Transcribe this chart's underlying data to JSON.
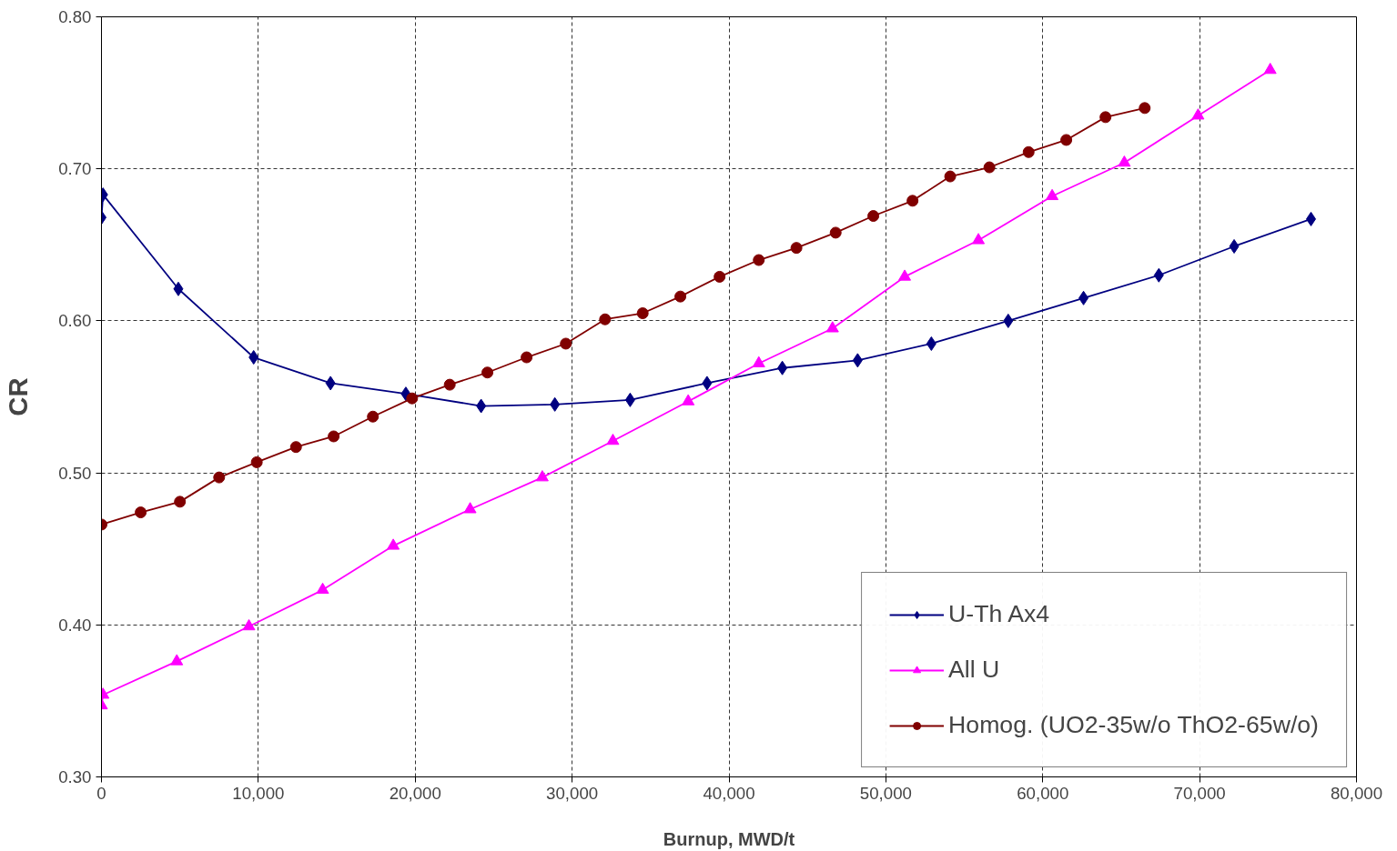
{
  "chart_data": {
    "type": "line",
    "xlabel": "Burnup, MWD/t",
    "ylabel": "CR",
    "xlim": [
      0,
      80000
    ],
    "ylim": [
      0.3,
      0.8
    ],
    "xticks": [
      0,
      {
        "value": 10000,
        "label": "10,000"
      },
      {
        "value": 20000,
        "label": "20,000"
      },
      {
        "value": 30000,
        "label": "30,000"
      },
      {
        "value": 40000,
        "label": "40,000"
      },
      {
        "value": 50000,
        "label": "50,000"
      },
      {
        "value": 60000,
        "label": "60,000"
      },
      {
        "value": 70000,
        "label": "70,000"
      },
      {
        "value": 80000,
        "label": "80,000"
      }
    ],
    "yticks": [
      {
        "value": 0.3,
        "label": "0.30"
      },
      {
        "value": 0.4,
        "label": "0.40"
      },
      {
        "value": 0.5,
        "label": "0.50"
      },
      {
        "value": 0.6,
        "label": "0.60"
      },
      {
        "value": 0.7,
        "label": "0.70"
      },
      {
        "value": 0.8,
        "label": "0.80"
      }
    ],
    "grid": true,
    "legend": "bottom right",
    "line_style": "solid",
    "series": [
      {
        "name": "U-Th Ax4",
        "color": "#000080",
        "marker": "diamond",
        "x": [
          0,
          100,
          4900,
          9700,
          14600,
          19400,
          24200,
          28900,
          33700,
          38600,
          43400,
          48200,
          52900,
          57800,
          62600,
          67400,
          72200,
          77100
        ],
        "values": [
          0.668,
          0.683,
          0.621,
          0.576,
          0.559,
          0.552,
          0.544,
          0.545,
          0.548,
          0.559,
          0.569,
          0.574,
          0.585,
          0.6,
          0.615,
          0.63,
          0.649,
          0.667
        ]
      },
      {
        "name": "All U",
        "color": "#ff00ff",
        "marker": "triangle",
        "x": [
          0,
          100,
          4800,
          9400,
          14100,
          18600,
          23500,
          28100,
          32600,
          37400,
          41900,
          46600,
          51200,
          55900,
          60600,
          65200,
          69900,
          74500
        ],
        "values": [
          0.347,
          0.354,
          0.376,
          0.399,
          0.423,
          0.452,
          0.476,
          0.497,
          0.521,
          0.547,
          0.572,
          0.595,
          0.629,
          0.653,
          0.682,
          0.704,
          0.735,
          0.765
        ]
      },
      {
        "name": "Homog. (UO2-35w/o ThO2-65w/o)",
        "color": "#800000",
        "marker": "circle",
        "x": [
          0,
          2500,
          5000,
          7500,
          9900,
          12400,
          14800,
          17300,
          19800,
          22200,
          24600,
          27100,
          29600,
          32100,
          34500,
          36900,
          39400,
          41900,
          44300,
          46800,
          49200,
          51700,
          54100,
          56600,
          59100,
          61500,
          64000,
          66500
        ],
        "values": [
          0.466,
          0.474,
          0.481,
          0.497,
          0.507,
          0.517,
          0.524,
          0.537,
          0.549,
          0.558,
          0.566,
          0.576,
          0.585,
          0.601,
          0.605,
          0.616,
          0.629,
          0.64,
          0.648,
          0.658,
          0.669,
          0.679,
          0.695,
          0.701,
          0.711,
          0.719,
          0.734,
          0.74
        ]
      }
    ]
  }
}
